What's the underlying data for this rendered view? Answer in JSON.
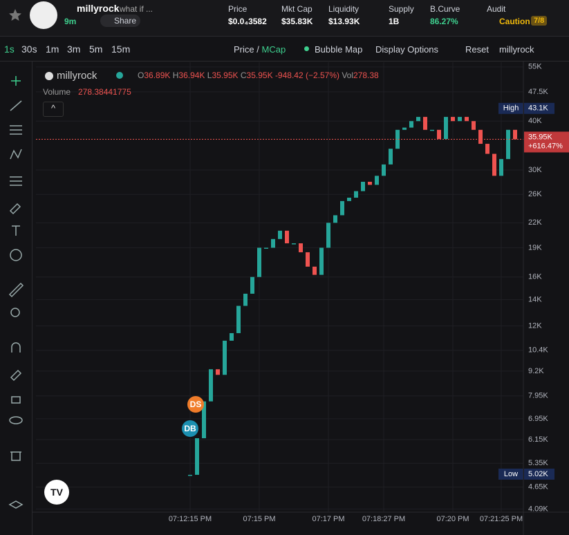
{
  "header": {
    "token": "millyrock",
    "description": "what if ...",
    "age": "9m",
    "share": "Share",
    "stats": [
      {
        "label": "Price",
        "value": "$0.0₄3582"
      },
      {
        "label": "Mkt Cap",
        "value": "$35.83K"
      },
      {
        "label": "Liquidity",
        "value": "$13.93K"
      },
      {
        "label": "Supply",
        "value": "1B"
      },
      {
        "label": "B.Curve",
        "value": "86.27%"
      },
      {
        "label": "Audit",
        "value": "Caution",
        "badge": "7/8"
      }
    ]
  },
  "toolbar": {
    "intervals": [
      "1s",
      "30s",
      "1m",
      "3m",
      "5m",
      "15m"
    ],
    "price": "Price",
    "slash": "/",
    "mcap": "MCap",
    "bubble_map": "Bubble Map",
    "display_options": "Display Options",
    "reset": "Reset",
    "symbol": "millyrock"
  },
  "legend": {
    "name": "millyrock",
    "ohlc": [
      {
        "label": "O",
        "value": "36.89K"
      },
      {
        "label": "H",
        "value": "36.94K"
      },
      {
        "label": "L",
        "value": "35.95K"
      },
      {
        "label": "C",
        "value": "35.95K"
      }
    ],
    "change": "-948.42 (−2.57%)",
    "vol_label": "Vol",
    "vol_value": "278.38",
    "volume_label": "Volume",
    "volume_value": "278.38441775"
  },
  "markers": [
    "DS",
    "DB"
  ],
  "chart_data": {
    "type": "candlestick",
    "log_scale": true,
    "up_color": "#26a69a",
    "down_color": "#ef5350",
    "categories": [
      "07:12:15 PM",
      null,
      null,
      null,
      null,
      null,
      null,
      null,
      null,
      null,
      "07:15 PM",
      null,
      null,
      null,
      null,
      null,
      null,
      null,
      null,
      null,
      "07:17 PM",
      null,
      null,
      null,
      null,
      null,
      null,
      null,
      "07:18:27 PM",
      null,
      null,
      null,
      null,
      null,
      null,
      null,
      null,
      null,
      "07:20 PM",
      null,
      null,
      null,
      null,
      null,
      null,
      "07:21:25 PM",
      null,
      null
    ],
    "values": [
      5000,
      6200,
      7700,
      9300,
      9000,
      11000,
      11500,
      13500,
      14500,
      16000,
      19000,
      19000,
      20000,
      21000,
      19500,
      19500,
      18500,
      17000,
      16200,
      19000,
      22000,
      23000,
      25000,
      25500,
      26500,
      28000,
      27500,
      29000,
      31000,
      34000,
      38000,
      38500,
      40000,
      41000,
      38000,
      38000,
      36000,
      41000,
      40000,
      41000,
      40000,
      38000,
      35000,
      33000,
      29000,
      32000,
      38000,
      35950
    ],
    "ylim": [
      4030,
      56550
    ],
    "yticks": [
      {
        "value": 55000,
        "label": "55K"
      },
      {
        "value": 47500,
        "label": "47.5K"
      },
      {
        "value": 40000,
        "label": "40K"
      },
      {
        "value": 30000,
        "label": "30K"
      },
      {
        "value": 26000,
        "label": "26K"
      },
      {
        "value": 22000,
        "label": "22K"
      },
      {
        "value": 19000,
        "label": "19K"
      },
      {
        "value": 16000,
        "label": "16K"
      },
      {
        "value": 14000,
        "label": "14K"
      },
      {
        "value": 12000,
        "label": "12K"
      },
      {
        "value": 10400,
        "label": "10.4K"
      },
      {
        "value": 9200,
        "label": "9.2K"
      },
      {
        "value": 7950,
        "label": "7.95K"
      },
      {
        "value": 6950,
        "label": "6.95K"
      },
      {
        "value": 6150,
        "label": "6.15K"
      },
      {
        "value": 5350,
        "label": "5.35K"
      },
      {
        "value": 4650,
        "label": "4.65K"
      },
      {
        "value": 4090,
        "label": "4.09K"
      }
    ],
    "high": {
      "name": "High",
      "value": 43100,
      "label": "43.1K"
    },
    "low": {
      "name": "Low",
      "value": 5020,
      "label": "5.02K"
    },
    "last": {
      "value": 35950,
      "label": "35.95K",
      "change": "+616.47%"
    }
  }
}
